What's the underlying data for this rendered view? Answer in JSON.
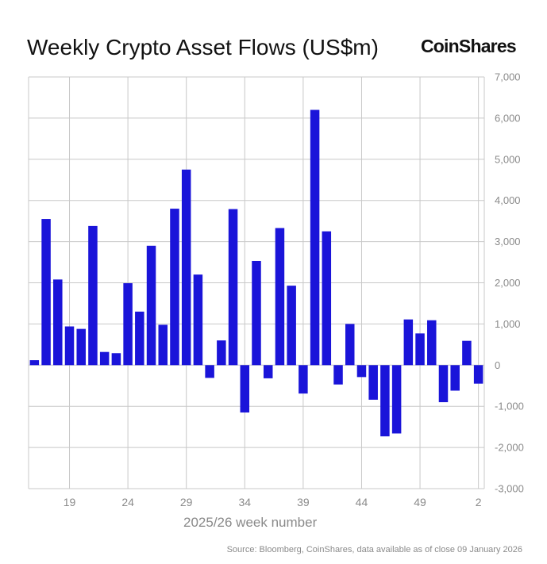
{
  "header": {
    "title": "Weekly Crypto Asset Flows (US$m)",
    "brand": "CoinShares"
  },
  "footer": {
    "source": "Source: Bloomberg, CoinShares, data available as of close 09 January 2026"
  },
  "colors": {
    "bar": "#1a14d9",
    "grid": "#c8c8c8",
    "axis_text": "#8a8a8a"
  },
  "chart_data": {
    "type": "bar",
    "title": "Weekly Crypto Asset Flows (US$m)",
    "xlabel": "2025/26 week number",
    "ylabel": "",
    "ylim": [
      -3000,
      7000
    ],
    "yticks": [
      -3000,
      -2000,
      -1000,
      0,
      1000,
      2000,
      3000,
      4000,
      5000,
      6000,
      7000
    ],
    "ytick_labels": [
      "-3,000",
      "-2,000",
      "-1,000",
      "0",
      "1,000",
      "2,000",
      "3,000",
      "4,000",
      "5,000",
      "6,000",
      "7,000"
    ],
    "xtick_labels": [
      "19",
      "24",
      "29",
      "34",
      "39",
      "44",
      "49",
      "2"
    ],
    "xtick_categories": [
      "19",
      "24",
      "29",
      "34",
      "39",
      "44",
      "49",
      "2"
    ],
    "grid": true,
    "categories": [
      "16",
      "17",
      "18",
      "19",
      "20",
      "21",
      "22",
      "23",
      "24",
      "25",
      "26",
      "27",
      "28",
      "29",
      "30",
      "31",
      "32",
      "33",
      "34",
      "35",
      "36",
      "37",
      "38",
      "39",
      "40",
      "41",
      "42",
      "43",
      "44",
      "45",
      "46",
      "47",
      "48",
      "49",
      "50",
      "51",
      "52",
      "1",
      "2"
    ],
    "values": [
      120,
      3550,
      2080,
      940,
      880,
      3380,
      320,
      290,
      1990,
      1300,
      2900,
      980,
      3800,
      4750,
      2200,
      -310,
      600,
      3790,
      -1150,
      2530,
      -320,
      3330,
      1930,
      -690,
      6200,
      3250,
      -470,
      1000,
      -290,
      -840,
      -1730,
      -1660,
      1110,
      770,
      1090,
      -900,
      -620,
      590,
      -450
    ]
  }
}
